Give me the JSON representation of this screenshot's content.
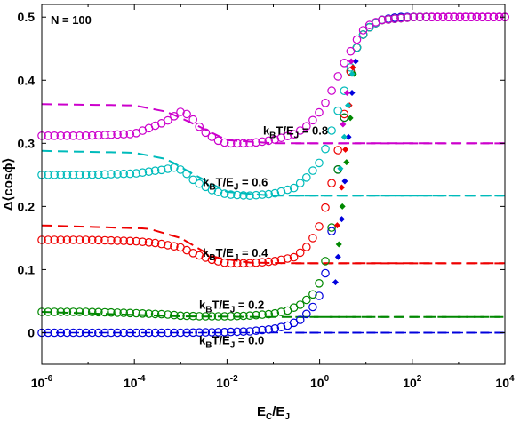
{
  "chart_data": {
    "type": "scatter",
    "title": "",
    "corner_label": "N = 100",
    "xlabel": {
      "main": "E",
      "sub1": "C",
      "mid": "/E",
      "sub2": "J"
    },
    "ylabel": "Δ⟨cosϕ⟩",
    "x_scale": "log",
    "xlim": [
      1e-06,
      10000
    ],
    "ylim": [
      -0.05,
      0.52
    ],
    "x_ticks": [
      {
        "base": "10",
        "exp": "-6",
        "value": 1e-06
      },
      {
        "base": "10",
        "exp": "-4",
        "value": 0.0001
      },
      {
        "base": "10",
        "exp": "-2",
        "value": 0.01
      },
      {
        "base": "10",
        "exp": "0",
        "value": 1
      },
      {
        "base": "10",
        "exp": "2",
        "value": 100
      },
      {
        "base": "10",
        "exp": "4",
        "value": 10000
      }
    ],
    "y_ticks": [
      "0",
      "0.1",
      "0.2",
      "0.3",
      "0.4",
      "0.5"
    ],
    "y_tick_values": [
      0,
      0.1,
      0.2,
      0.3,
      0.4,
      0.5
    ],
    "series": [
      {
        "name": "kBT/EJ = 0.0",
        "label": {
          "k": "k",
          "ksub": "B",
          "t": "T/E",
          "jsub": "J",
          "val": " = 0.0"
        },
        "color": "#0000dd",
        "classical_line": 0.0,
        "points": [
          [
            1e-06,
            0.0
          ],
          [
            1e-05,
            0.0
          ],
          [
            0.0001,
            0.0
          ],
          [
            0.001,
            0.0
          ],
          [
            0.01,
            0.001
          ],
          [
            0.03,
            0.002
          ],
          [
            0.1,
            0.006
          ],
          [
            0.2,
            0.011
          ],
          [
            0.4,
            0.021
          ],
          [
            0.7,
            0.04
          ],
          [
            1.0,
            0.06
          ],
          [
            1.3,
            0.09
          ],
          [
            1.7,
            0.14
          ],
          [
            2.0,
            0.19
          ],
          [
            2.5,
            0.26
          ],
          [
            3.0,
            0.31
          ],
          [
            4.0,
            0.38
          ],
          [
            5.0,
            0.43
          ],
          [
            7.0,
            0.46
          ],
          [
            10.0,
            0.48
          ],
          [
            20.0,
            0.495
          ],
          [
            50.0,
            0.5
          ],
          [
            100.0,
            0.5
          ],
          [
            1000.0,
            0.5
          ],
          [
            10000.0,
            0.5
          ]
        ]
      },
      {
        "name": "kBT/EJ = 0.2",
        "label": {
          "k": "k",
          "ksub": "B",
          "t": "T/E",
          "jsub": "J",
          "val": " = 0.2"
        },
        "color": "#008800",
        "classical_line": 0.025,
        "points": [
          [
            1e-06,
            0.033
          ],
          [
            1e-05,
            0.033
          ],
          [
            0.0001,
            0.031
          ],
          [
            0.0005,
            0.029
          ],
          [
            0.001,
            0.027
          ],
          [
            0.003,
            0.026
          ],
          [
            0.01,
            0.026
          ],
          [
            0.03,
            0.027
          ],
          [
            0.1,
            0.03
          ],
          [
            0.2,
            0.035
          ],
          [
            0.4,
            0.045
          ],
          [
            0.7,
            0.06
          ],
          [
            1.0,
            0.08
          ],
          [
            1.3,
            0.11
          ],
          [
            1.7,
            0.15
          ],
          [
            2.0,
            0.19
          ],
          [
            2.5,
            0.26
          ],
          [
            3.0,
            0.31
          ],
          [
            4.0,
            0.38
          ],
          [
            5.0,
            0.43
          ],
          [
            7.0,
            0.46
          ],
          [
            10.0,
            0.48
          ],
          [
            20.0,
            0.495
          ],
          [
            100.0,
            0.5
          ],
          [
            10000.0,
            0.5
          ]
        ]
      },
      {
        "name": "kBT/EJ = 0.4",
        "label": {
          "k": "k",
          "ksub": "B",
          "t": "T/E",
          "jsub": "J",
          "val": " = 0.4"
        },
        "color": "#ee0000",
        "classical_line": 0.11,
        "points": [
          [
            1e-06,
            0.147
          ],
          [
            1e-05,
            0.147
          ],
          [
            0.0001,
            0.145
          ],
          [
            0.0003,
            0.142
          ],
          [
            0.001,
            0.135
          ],
          [
            0.002,
            0.125
          ],
          [
            0.005,
            0.115
          ],
          [
            0.01,
            0.11
          ],
          [
            0.03,
            0.11
          ],
          [
            0.1,
            0.113
          ],
          [
            0.3,
            0.12
          ],
          [
            0.6,
            0.14
          ],
          [
            1.0,
            0.17
          ],
          [
            1.5,
            0.21
          ],
          [
            2.0,
            0.25
          ],
          [
            2.5,
            0.29
          ],
          [
            3.0,
            0.32
          ],
          [
            4.0,
            0.38
          ],
          [
            5.0,
            0.43
          ],
          [
            7.0,
            0.46
          ],
          [
            10.0,
            0.48
          ],
          [
            20.0,
            0.495
          ],
          [
            100.0,
            0.5
          ],
          [
            10000.0,
            0.5
          ]
        ]
      },
      {
        "name": "kBT/EJ = 0.6",
        "label": {
          "k": "k",
          "ksub": "B",
          "t": "T/E",
          "jsub": "J",
          "val": " = 0.6"
        },
        "color": "#00bbbb",
        "classical_line": 0.217,
        "points": [
          [
            1e-06,
            0.25
          ],
          [
            1e-05,
            0.25
          ],
          [
            0.0001,
            0.252
          ],
          [
            0.0004,
            0.258
          ],
          [
            0.0008,
            0.262
          ],
          [
            0.0012,
            0.255
          ],
          [
            0.002,
            0.24
          ],
          [
            0.005,
            0.225
          ],
          [
            0.01,
            0.219
          ],
          [
            0.03,
            0.217
          ],
          [
            0.1,
            0.22
          ],
          [
            0.3,
            0.23
          ],
          [
            0.6,
            0.25
          ],
          [
            1.0,
            0.27
          ],
          [
            1.5,
            0.3
          ],
          [
            2.0,
            0.33
          ],
          [
            3.0,
            0.37
          ],
          [
            4.0,
            0.4
          ],
          [
            5.0,
            0.43
          ],
          [
            7.0,
            0.46
          ],
          [
            10.0,
            0.48
          ],
          [
            20.0,
            0.495
          ],
          [
            100.0,
            0.5
          ],
          [
            10000.0,
            0.5
          ]
        ]
      },
      {
        "name": "kBT/EJ = 0.8",
        "label": {
          "k": "k",
          "ksub": "B",
          "t": "T/E",
          "jsub": "J",
          "val": " = 0.8"
        },
        "color": "#cc00cc",
        "classical_line": 0.3,
        "points": [
          [
            1e-06,
            0.312
          ],
          [
            1e-05,
            0.312
          ],
          [
            0.0001,
            0.315
          ],
          [
            0.0005,
            0.335
          ],
          [
            0.001,
            0.35
          ],
          [
            0.0015,
            0.345
          ],
          [
            0.003,
            0.32
          ],
          [
            0.006,
            0.305
          ],
          [
            0.01,
            0.3
          ],
          [
            0.03,
            0.3
          ],
          [
            0.1,
            0.305
          ],
          [
            0.3,
            0.315
          ],
          [
            0.6,
            0.33
          ],
          [
            1.0,
            0.35
          ],
          [
            1.5,
            0.37
          ],
          [
            2.0,
            0.39
          ],
          [
            3.0,
            0.42
          ],
          [
            5.0,
            0.45
          ],
          [
            7.0,
            0.47
          ],
          [
            10.0,
            0.485
          ],
          [
            20.0,
            0.495
          ],
          [
            100.0,
            0.5
          ],
          [
            10000.0,
            0.5
          ]
        ]
      }
    ],
    "quantum_dashed": [
      {
        "color": "#008800",
        "points": [
          [
            1e-06,
            0.033
          ],
          [
            0.001,
            0.026
          ],
          [
            0.05,
            0.025
          ],
          [
            0.3,
            0.025
          ],
          [
            10000.0,
            0.025
          ]
        ]
      },
      {
        "color": "#ee0000",
        "points": [
          [
            1e-06,
            0.17
          ],
          [
            0.0002,
            0.165
          ],
          [
            0.001,
            0.15
          ],
          [
            0.005,
            0.12
          ],
          [
            0.03,
            0.111
          ],
          [
            0.3,
            0.11
          ],
          [
            10000.0,
            0.11
          ]
        ]
      },
      {
        "color": "#00bbbb",
        "points": [
          [
            1e-06,
            0.288
          ],
          [
            0.0001,
            0.285
          ],
          [
            0.0005,
            0.275
          ],
          [
            0.002,
            0.25
          ],
          [
            0.01,
            0.223
          ],
          [
            0.1,
            0.217
          ],
          [
            10000.0,
            0.217
          ]
        ]
      },
      {
        "color": "#cc00cc",
        "points": [
          [
            1e-06,
            0.362
          ],
          [
            0.0001,
            0.36
          ],
          [
            0.0005,
            0.35
          ],
          [
            0.002,
            0.33
          ],
          [
            0.01,
            0.305
          ],
          [
            0.1,
            0.3
          ],
          [
            10000.0,
            0.3
          ]
        ]
      }
    ],
    "diamonds": [
      {
        "color": "#0000dd",
        "points": [
          [
            2.2,
            0.08
          ],
          [
            2.5,
            0.12
          ],
          [
            3.0,
            0.18
          ],
          [
            3.5,
            0.24
          ],
          [
            4.2,
            0.31
          ],
          [
            5.0,
            0.38
          ],
          [
            6.0,
            0.43
          ]
        ]
      },
      {
        "color": "#008800",
        "points": [
          [
            2.6,
            0.14
          ],
          [
            3.1,
            0.2
          ],
          [
            3.8,
            0.27
          ],
          [
            4.6,
            0.34
          ],
          [
            5.5,
            0.41
          ]
        ]
      },
      {
        "color": "#ee0000",
        "points": [
          [
            2.4,
            0.17
          ],
          [
            3.0,
            0.23
          ],
          [
            3.6,
            0.29
          ],
          [
            4.4,
            0.36
          ],
          [
            5.2,
            0.42
          ]
        ]
      },
      {
        "color": "#00bbbb",
        "points": [
          [
            2.8,
            0.26
          ],
          [
            3.4,
            0.31
          ],
          [
            4.1,
            0.36
          ],
          [
            5.0,
            0.41
          ]
        ]
      },
      {
        "color": "#cc00cc",
        "points": [
          [
            3.2,
            0.33
          ],
          [
            3.9,
            0.38
          ],
          [
            4.8,
            0.43
          ]
        ]
      }
    ],
    "annotations": [
      {
        "series": 4,
        "anchor": [
          3.0,
          0.3
        ]
      },
      {
        "series": 3,
        "anchor": [
          0.001,
          0.22
        ]
      },
      {
        "series": 2,
        "anchor": [
          0.001,
          0.112
        ]
      },
      {
        "series": 1,
        "anchor": [
          0.001,
          0.038
        ]
      },
      {
        "series": 0,
        "anchor": [
          0.001,
          -0.02
        ]
      }
    ],
    "grid": false,
    "legend": "none"
  }
}
